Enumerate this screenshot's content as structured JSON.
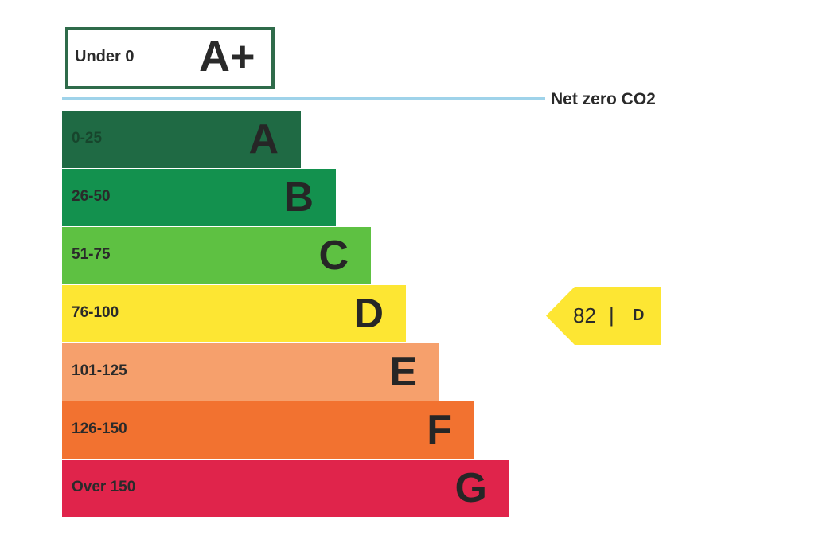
{
  "aplus": {
    "range": "Under 0",
    "letter": "A+"
  },
  "net_zero_label": "Net zero CO2",
  "bands": [
    {
      "range": "0-25",
      "letter": "A"
    },
    {
      "range": "26-50",
      "letter": "B"
    },
    {
      "range": "51-75",
      "letter": "C"
    },
    {
      "range": "76-100",
      "letter": "D"
    },
    {
      "range": "101-125",
      "letter": "E"
    },
    {
      "range": "126-150",
      "letter": "F"
    },
    {
      "range": "Over 150",
      "letter": "G"
    }
  ],
  "indicator": {
    "score": 82,
    "separator": "|",
    "rating": "D"
  }
}
